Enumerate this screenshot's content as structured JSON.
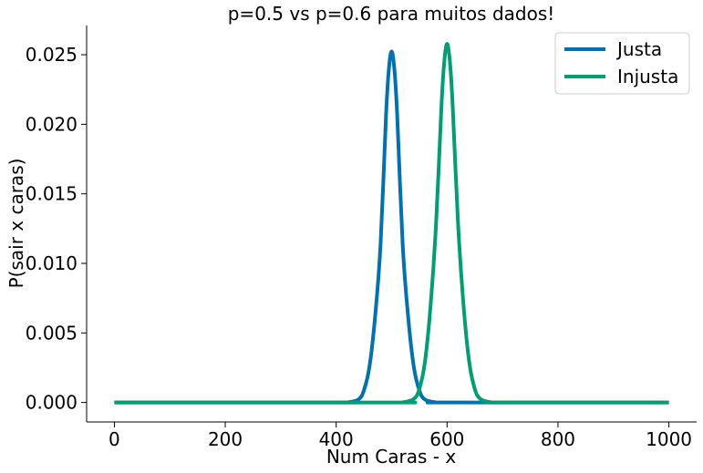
{
  "chart_data": {
    "type": "line",
    "title": "p=0.5 vs p=0.6 para muitos dados!",
    "xlabel": "Num Caras - x",
    "ylabel": "P(sair x caras)",
    "xlim": [
      -50,
      1050
    ],
    "ylim": [
      -0.0014,
      0.0271
    ],
    "xticks": [
      0,
      200,
      400,
      600,
      800,
      1000
    ],
    "xtick_labels": [
      "0",
      "200",
      "400",
      "600",
      "800",
      "1000"
    ],
    "yticks": [
      0.0,
      0.005,
      0.01,
      0.015,
      0.02,
      0.025
    ],
    "ytick_labels": [
      "0.000",
      "0.005",
      "0.010",
      "0.015",
      "0.020",
      "0.025"
    ],
    "grid": false,
    "legend_position": "top-right",
    "series": [
      {
        "name": "Justa",
        "color": "#0072b2",
        "x": [
          0,
          400,
          420,
          440,
          450,
          460,
          470,
          480,
          490,
          495,
          500,
          505,
          510,
          520,
          530,
          540,
          550,
          560,
          580,
          600,
          1000
        ],
        "y": [
          0.0,
          0.0,
          1e-05,
          0.00021,
          0.00087,
          0.00257,
          0.00607,
          0.01132,
          0.02071,
          0.02396,
          0.02523,
          0.02396,
          0.02071,
          0.01132,
          0.00607,
          0.00257,
          0.00087,
          0.00021,
          1e-05,
          0.0,
          0.0
        ]
      },
      {
        "name": "Injusta",
        "color": "#009e73",
        "x": [
          0,
          500,
          520,
          540,
          550,
          560,
          570,
          580,
          590,
          595,
          600,
          605,
          610,
          620,
          630,
          640,
          650,
          660,
          680,
          700,
          1000
        ],
        "y": [
          0.0,
          0.0,
          1e-05,
          0.00026,
          0.00097,
          0.00289,
          0.00683,
          0.01271,
          0.02143,
          0.02453,
          0.02578,
          0.02453,
          0.02143,
          0.01271,
          0.00683,
          0.00289,
          0.00097,
          0.00026,
          1e-05,
          0.0,
          0.0
        ]
      }
    ]
  }
}
